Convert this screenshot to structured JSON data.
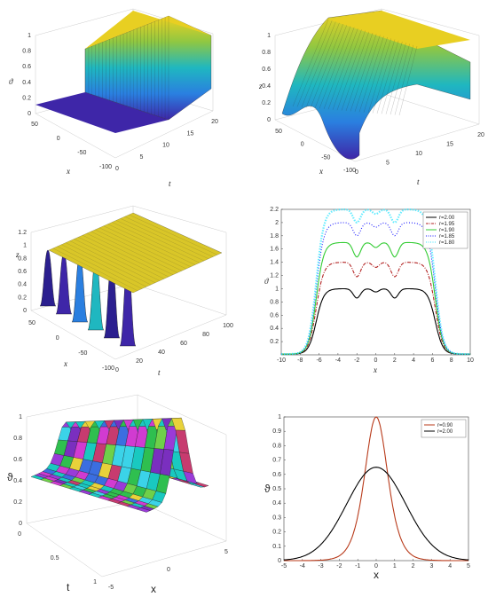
{
  "figure": {
    "panels": {
      "p1": {
        "zlabel": "ϑ",
        "xlabel": "x",
        "ylabel": "t",
        "zticks": [
          "0",
          "0.2",
          "0.4",
          "0.6",
          "0.8",
          "1"
        ],
        "xticks": [
          "50",
          "0",
          "-50",
          "-100"
        ],
        "tticks": [
          "0",
          "5",
          "10",
          "15",
          "20"
        ]
      },
      "p2": {
        "zlabel": "z",
        "xlabel": "x",
        "ylabel": "t",
        "zticks": [
          "0",
          "0.2",
          "0.4",
          "0.6",
          "0.8",
          "1"
        ],
        "xticks": [
          "50",
          "0",
          "-50",
          "-100"
        ],
        "tticks": [
          "0",
          "5",
          "10",
          "15",
          "20"
        ]
      },
      "p3": {
        "zlabel": "z",
        "xlabel": "x",
        "ylabel": "t",
        "zticks": [
          "0",
          "0.2",
          "0.4",
          "0.6",
          "0.8",
          "1",
          "1.2"
        ],
        "xticks": [
          "50",
          "0",
          "-50",
          "-100"
        ],
        "tticks": [
          "0",
          "20",
          "40",
          "60",
          "80",
          "100"
        ]
      },
      "p5": {
        "zlabel": "ϑ",
        "xlabel": "x",
        "ylabel": "t",
        "zticks": [
          "0",
          "0.2",
          "0.4",
          "0.6",
          "0.8",
          "1"
        ],
        "xticks": [
          "-5",
          "0",
          "5"
        ],
        "tticks": [
          "0",
          "0.5",
          "1"
        ]
      }
    }
  },
  "chart_data": [
    {
      "type": "surface3d",
      "panel": "p1",
      "zlabel": "ϑ",
      "xlabel": "x",
      "ylabel": "t",
      "x_range": [
        -100,
        70
      ],
      "t_range": [
        0,
        20
      ],
      "z_range": [
        0,
        1
      ],
      "colormap": "parula"
    },
    {
      "type": "surface3d",
      "panel": "p2",
      "zlabel": "z",
      "xlabel": "x",
      "ylabel": "t",
      "x_range": [
        -100,
        70
      ],
      "t_range": [
        0,
        20
      ],
      "z_range": [
        0,
        1
      ],
      "colormap": "parula"
    },
    {
      "type": "surface3d",
      "panel": "p3",
      "zlabel": "z",
      "xlabel": "x",
      "ylabel": "t",
      "x_range": [
        -100,
        70
      ],
      "t_range": [
        0,
        100
      ],
      "z_range": [
        0,
        1.2
      ],
      "colormap": "parula"
    },
    {
      "type": "line",
      "panel": "p4",
      "xlabel": "x",
      "ylabel": "ϑ",
      "xlim": [
        -10,
        10
      ],
      "ylim": [
        0,
        2.2
      ],
      "xticks": [
        "-10",
        "-8",
        "-6",
        "-4",
        "-2",
        "0",
        "2",
        "4",
        "6",
        "8",
        "10"
      ],
      "yticks": [
        "0.2",
        "0.4",
        "0.6",
        "0.8",
        "1",
        "1.2",
        "1.4",
        "1.6",
        "1.8",
        "2",
        "2.2"
      ],
      "legend_position": "top-right",
      "series": [
        {
          "name": "r=2.00",
          "color": "#000000",
          "style": "solid",
          "plateau": 1.0,
          "dip": 0.86
        },
        {
          "name": "r=1.95",
          "color": "#b22222",
          "style": "dashdot",
          "plateau": 1.4,
          "dip": 1.18
        },
        {
          "name": "r=1.90",
          "color": "#33cc33",
          "style": "solid",
          "plateau": 1.7,
          "dip": 1.48
        },
        {
          "name": "r=1.85",
          "color": "#1a1aff",
          "style": "dotted",
          "plateau": 2.0,
          "dip": 1.8
        },
        {
          "name": "r=1.80",
          "color": "#33e6ff",
          "style": "plus",
          "plateau": 2.2,
          "dip": 2.0
        }
      ]
    },
    {
      "type": "surface3d",
      "panel": "p5",
      "zlabel": "ϑ",
      "xlabel": "x",
      "ylabel": "t",
      "x_range": [
        -5,
        5
      ],
      "t_range": [
        0,
        1
      ],
      "z_range": [
        0,
        1
      ],
      "colormap": "random"
    },
    {
      "type": "line",
      "panel": "p6",
      "xlabel": "x",
      "ylabel": "ϑ",
      "xlim": [
        -5,
        5
      ],
      "ylim": [
        0,
        1
      ],
      "xticks": [
        "-5",
        "-4",
        "-3",
        "-2",
        "-1",
        "0",
        "1",
        "2",
        "3",
        "4",
        "5"
      ],
      "yticks": [
        "0",
        "0.1",
        "0.2",
        "0.3",
        "0.4",
        "0.5",
        "0.6",
        "0.7",
        "0.8",
        "0.9",
        "1"
      ],
      "legend_position": "top-right",
      "series": [
        {
          "name": "r=0.90",
          "color": "#b83a1a",
          "peak": 1.0,
          "width": 0.6
        },
        {
          "name": "r=2.00",
          "color": "#000000",
          "peak": 0.65,
          "width": 1.6
        }
      ]
    }
  ]
}
